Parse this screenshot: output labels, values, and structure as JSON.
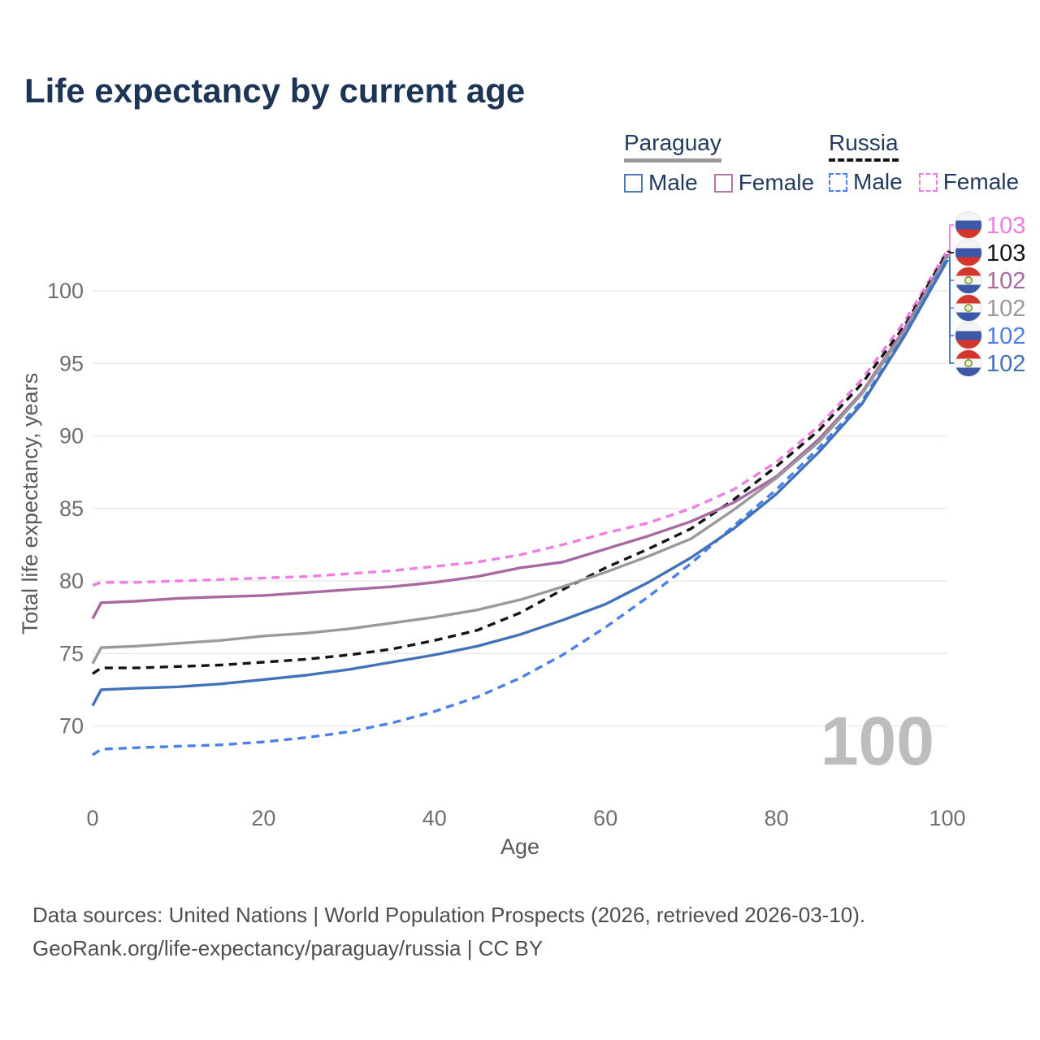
{
  "title": "Life expectancy by current age",
  "legend": {
    "groups": [
      {
        "country": "Paraguay",
        "line_style": "solid",
        "underline_color": "#9a9a9a",
        "items": [
          {
            "label": "Male",
            "color": "#4f79b6"
          },
          {
            "label": "Female",
            "color": "#b277ab"
          }
        ]
      },
      {
        "country": "Russia",
        "line_style": "dashed",
        "underline_color": "#141414",
        "items": [
          {
            "label": "Male",
            "color": "#4c80e8"
          },
          {
            "label": "Female",
            "color": "#f07de4"
          }
        ]
      }
    ]
  },
  "watermark": "100",
  "footer": {
    "line1": "Data sources: United Nations | World Population Prospects (2026, retrieved 2026-03-10).",
    "line2": "GeoRank.org/life-expectancy/paraguay/russia | CC BY"
  },
  "chart_data": {
    "type": "line",
    "title": "Life expectancy by current age",
    "xlabel": "Age",
    "ylabel": "Total life expectancy, years",
    "xlim": [
      0,
      100
    ],
    "ylim": [
      66.5,
      103.5
    ],
    "x_ticks": [
      0,
      20,
      40,
      60,
      80,
      100
    ],
    "y_ticks": [
      70,
      75,
      80,
      85,
      90,
      95,
      100
    ],
    "grid": "horizontal",
    "legend_position": "top-right",
    "x": [
      0,
      1,
      5,
      10,
      15,
      20,
      25,
      30,
      35,
      40,
      45,
      50,
      55,
      60,
      65,
      70,
      75,
      80,
      85,
      90,
      95,
      100
    ],
    "series": [
      {
        "name": "Russia Female",
        "country": "Russia",
        "sex": "Female",
        "color": "#f07de4",
        "dash": true,
        "flag": "ru",
        "end_label": "103",
        "values": [
          79.7,
          79.9,
          79.9,
          80.0,
          80.1,
          80.2,
          80.3,
          80.5,
          80.7,
          81.0,
          81.3,
          81.8,
          82.5,
          83.3,
          84.0,
          85.0,
          86.3,
          88.2,
          90.7,
          93.9,
          97.9,
          102.8
        ]
      },
      {
        "name": "Russia Both sexes",
        "country": "Russia",
        "sex": "Both",
        "color": "#141414",
        "dash": true,
        "flag": "ru",
        "end_label": "103",
        "values": [
          73.6,
          74.0,
          74.0,
          74.1,
          74.2,
          74.4,
          74.6,
          74.9,
          75.3,
          75.9,
          76.6,
          77.8,
          79.4,
          80.9,
          82.2,
          83.6,
          85.6,
          87.9,
          90.4,
          93.6,
          97.6,
          102.7
        ]
      },
      {
        "name": "Paraguay Female",
        "country": "Paraguay",
        "sex": "Female",
        "color": "#a869a1",
        "dash": false,
        "flag": "py",
        "end_label": "102",
        "values": [
          77.4,
          78.5,
          78.6,
          78.8,
          78.9,
          79.0,
          79.2,
          79.4,
          79.6,
          79.9,
          80.3,
          80.9,
          81.3,
          82.2,
          83.1,
          84.1,
          85.4,
          87.2,
          89.8,
          93.0,
          97.4,
          102.5
        ]
      },
      {
        "name": "Paraguay Both sexes",
        "country": "Paraguay",
        "sex": "Both",
        "color": "#9a9a9a",
        "dash": false,
        "flag": "py",
        "end_label": "102",
        "values": [
          74.3,
          75.4,
          75.5,
          75.7,
          75.9,
          76.2,
          76.4,
          76.7,
          77.1,
          77.5,
          78.0,
          78.7,
          79.6,
          80.6,
          81.7,
          82.9,
          84.9,
          87.1,
          89.6,
          92.9,
          97.2,
          102.4
        ]
      },
      {
        "name": "Russia Male",
        "country": "Russia",
        "sex": "Male",
        "color": "#4c80e8",
        "dash": true,
        "flag": "ru",
        "end_label": "102",
        "values": [
          68.0,
          68.4,
          68.5,
          68.6,
          68.7,
          68.9,
          69.2,
          69.6,
          70.2,
          71.0,
          72.0,
          73.3,
          74.9,
          76.8,
          78.9,
          81.2,
          83.8,
          86.3,
          89.2,
          92.4,
          97.0,
          102.3
        ]
      },
      {
        "name": "Paraguay Male",
        "country": "Paraguay",
        "sex": "Male",
        "color": "#4272b8",
        "dash": false,
        "flag": "py",
        "end_label": "102",
        "values": [
          71.4,
          72.5,
          72.6,
          72.7,
          72.9,
          73.2,
          73.5,
          73.9,
          74.4,
          74.9,
          75.5,
          76.3,
          77.3,
          78.4,
          79.9,
          81.6,
          83.6,
          86.0,
          88.9,
          92.2,
          96.9,
          102.1
        ]
      }
    ]
  }
}
